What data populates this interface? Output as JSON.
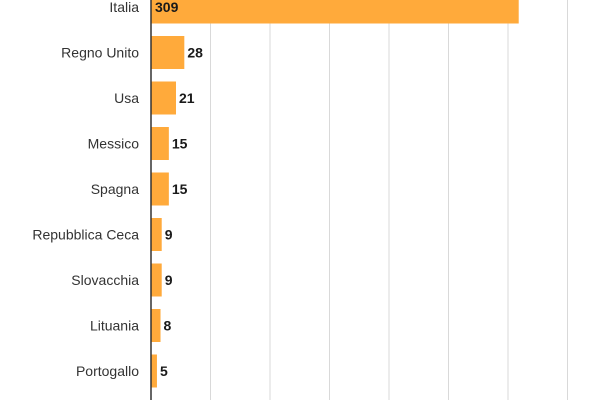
{
  "chart_data": {
    "type": "bar",
    "orientation": "horizontal",
    "title": "",
    "xlabel": "",
    "ylabel": "",
    "categories": [
      "Italia",
      "Regno Unito",
      "Usa",
      "Messico",
      "Spagna",
      "Repubblica Ceca",
      "Slovacchia",
      "Lituania",
      "Portogallo"
    ],
    "values": [
      309,
      28,
      21,
      15,
      15,
      9,
      9,
      8,
      5
    ],
    "xlim": [
      0,
      350
    ],
    "grid": true,
    "bar_color": "#ffaa3b"
  }
}
